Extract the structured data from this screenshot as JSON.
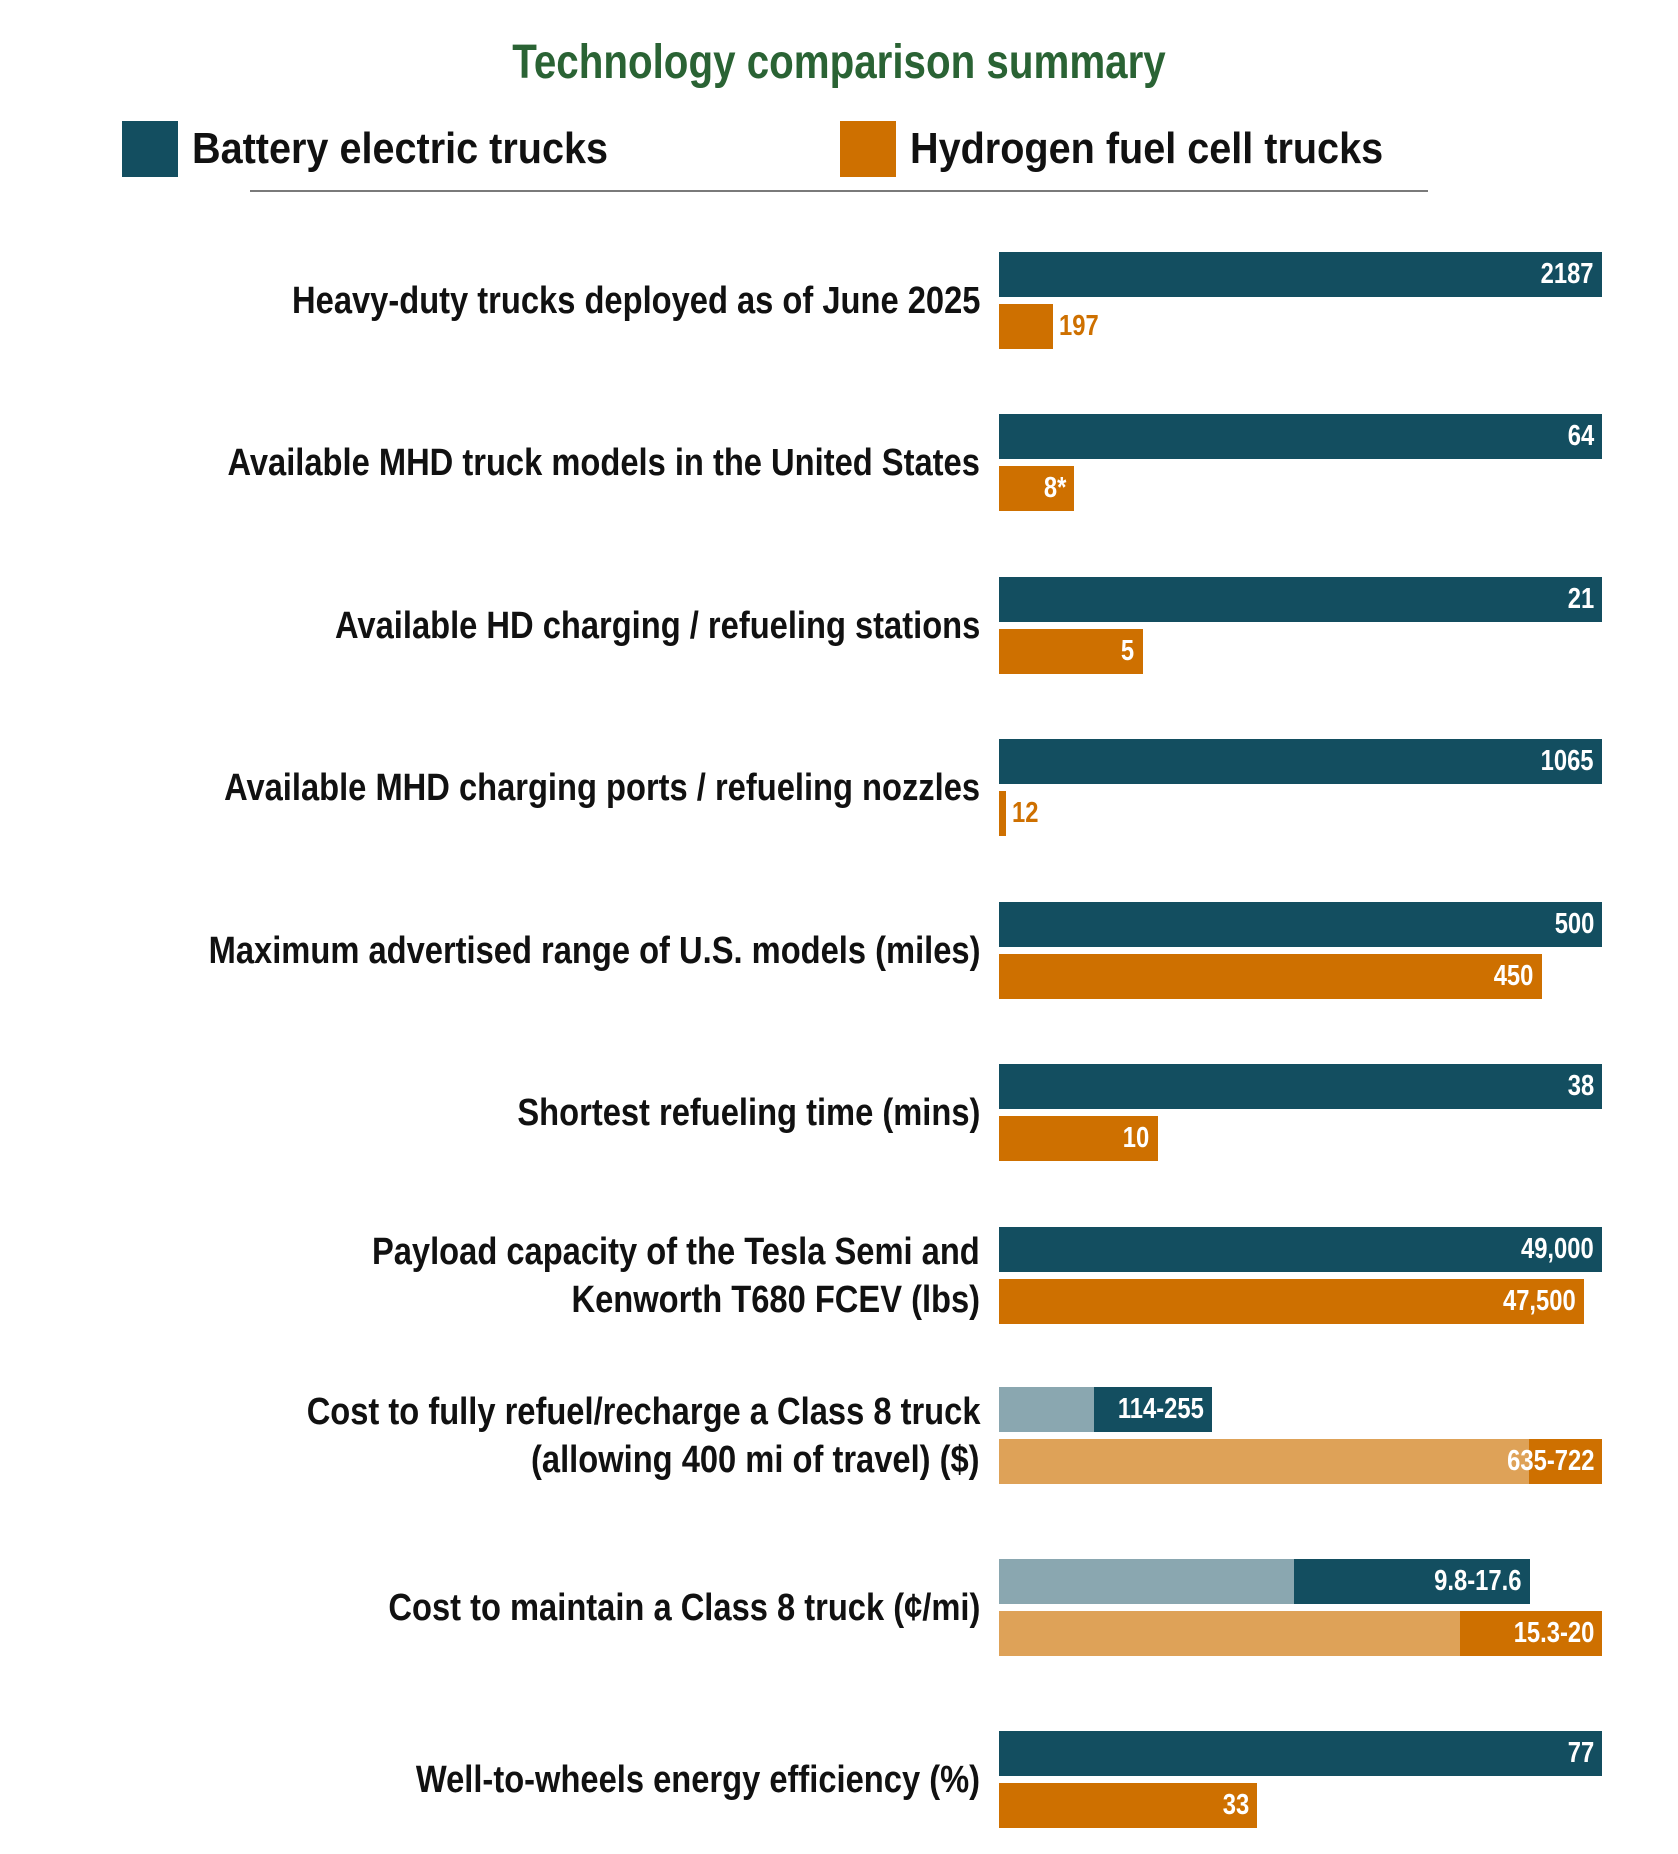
{
  "colors": {
    "title": "#2a6334",
    "bev": "#134e60",
    "bev_light": "#8aa7b0",
    "fcev": "#ce7000",
    "fcev_light": "#dea258",
    "label": "#111111",
    "separator": "#7a7a7a",
    "value_inside": "#ffffff"
  },
  "chart_data": {
    "type": "bar",
    "orientation": "horizontal",
    "title": "Technology comparison summary",
    "legend": {
      "placement": "top",
      "entries": [
        {
          "key": "bev",
          "label": "Battery electric trucks"
        },
        {
          "key": "fcev",
          "label": "Hydrogen fuel cell trucks"
        }
      ]
    },
    "scale": "each category normalized to its own maximum",
    "grid": false,
    "categories": [
      {
        "label_lines": [
          "Heavy-duty trucks deployed as of June 2025"
        ],
        "bev": {
          "value": 2187,
          "label": "2187"
        },
        "fcev": {
          "value": 197,
          "label": "197"
        },
        "max": 2187
      },
      {
        "label_lines": [
          "Available MHD truck models in the United States"
        ],
        "bev": {
          "value": 64,
          "label": "64"
        },
        "fcev": {
          "value": 8,
          "label": "8*"
        },
        "max": 64
      },
      {
        "label_lines": [
          "Available HD charging / refueling stations"
        ],
        "bev": {
          "value": 21,
          "label": "21"
        },
        "fcev": {
          "value": 5,
          "label": "5"
        },
        "max": 21
      },
      {
        "label_lines": [
          "Available MHD charging ports / refueling nozzles"
        ],
        "bev": {
          "value": 1065,
          "label": "1065"
        },
        "fcev": {
          "value": 12,
          "label": "12"
        },
        "max": 1065
      },
      {
        "label_lines": [
          "Maximum advertised range of U.S. models (miles)"
        ],
        "bev": {
          "value": 500,
          "label": "500"
        },
        "fcev": {
          "value": 450,
          "label": "450"
        },
        "max": 500
      },
      {
        "label_lines": [
          "Shortest refueling time (mins)"
        ],
        "bev": {
          "value": 38,
          "label": "38"
        },
        "fcev": {
          "value": 10,
          "label": "10"
        },
        "max": 38
      },
      {
        "label_lines": [
          "Payload capacity of the Tesla Semi and",
          "Kenworth T680 FCEV (lbs)"
        ],
        "bev": {
          "value": 49000,
          "label": "49,000"
        },
        "fcev": {
          "value": 47500,
          "label": "47,500"
        },
        "max": 49000
      },
      {
        "label_lines": [
          "Cost to fully refuel/recharge a Class 8 truck",
          "(allowing 400 mi of travel) ($)"
        ],
        "bev": {
          "range": [
            114,
            255
          ],
          "label": "114-255"
        },
        "fcev": {
          "range": [
            635,
            722
          ],
          "label": "635-722"
        },
        "max": 722
      },
      {
        "label_lines": [
          "Cost to maintain a Class 8 truck (¢/mi)"
        ],
        "bev": {
          "range": [
            9.8,
            17.6
          ],
          "label": "9.8-17.6"
        },
        "fcev": {
          "range": [
            15.3,
            20
          ],
          "label": "15.3-20"
        },
        "max": 20
      },
      {
        "label_lines": [
          "Well-to-wheels energy efficiency (%)"
        ],
        "bev": {
          "value": 77,
          "label": "77"
        },
        "fcev": {
          "value": 33,
          "label": "33"
        },
        "max": 77
      }
    ]
  }
}
